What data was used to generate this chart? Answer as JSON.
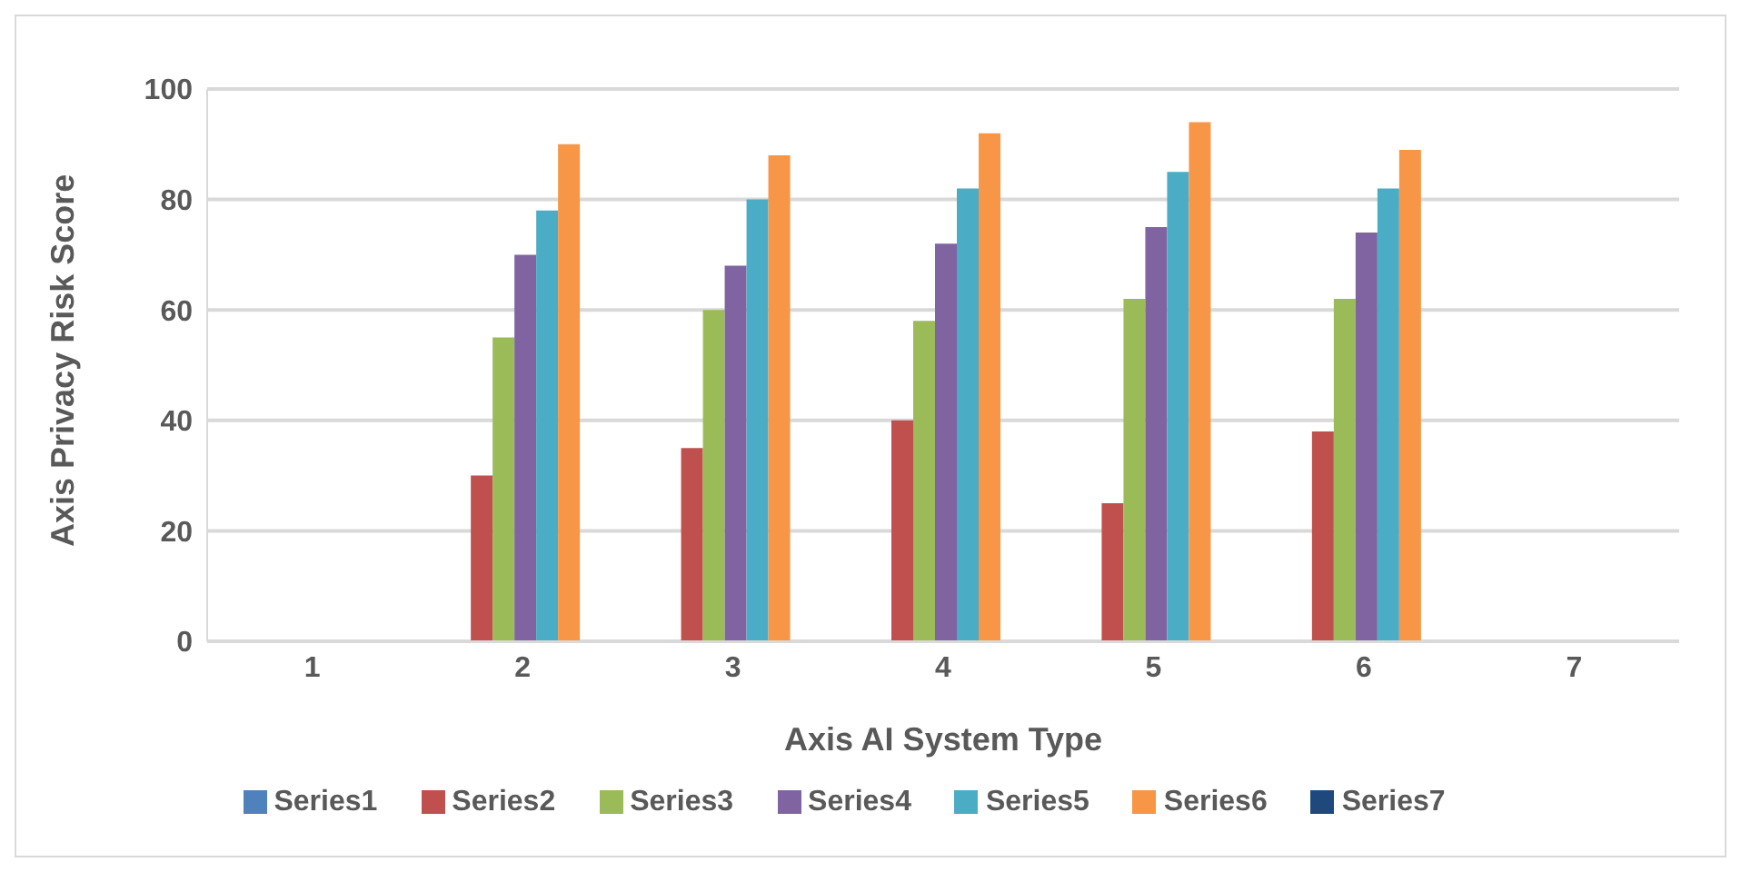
{
  "chart_data": {
    "type": "bar",
    "xlabel": "Axis AI System Type",
    "ylabel": "Axis Privacy Risk Score",
    "categories": [
      "1",
      "2",
      "3",
      "4",
      "5",
      "6",
      "7"
    ],
    "series": [
      {
        "name": "Series1",
        "color": "#4f81bd",
        "values": [
          0,
          0,
          0,
          0,
          0,
          0,
          null
        ]
      },
      {
        "name": "Series2",
        "color": "#c0504d",
        "values": [
          0,
          30,
          35,
          40,
          25,
          38,
          null
        ]
      },
      {
        "name": "Series3",
        "color": "#9bbb59",
        "values": [
          0,
          55,
          60,
          58,
          62,
          62,
          null
        ]
      },
      {
        "name": "Series4",
        "color": "#8064a2",
        "values": [
          0,
          70,
          68,
          72,
          75,
          74,
          null
        ]
      },
      {
        "name": "Series5",
        "color": "#4bacc6",
        "values": [
          0,
          78,
          80,
          82,
          85,
          82,
          null
        ]
      },
      {
        "name": "Series6",
        "color": "#f79646",
        "values": [
          0,
          90,
          88,
          92,
          94,
          89,
          null
        ]
      },
      {
        "name": "Series7",
        "color": "#1f497d",
        "values": [
          null,
          null,
          null,
          null,
          null,
          null,
          null
        ]
      }
    ],
    "ylim": [
      0,
      100
    ],
    "yticks": [
      0,
      20,
      40,
      60,
      80,
      100
    ],
    "grid": "y",
    "legend": "bottom"
  }
}
